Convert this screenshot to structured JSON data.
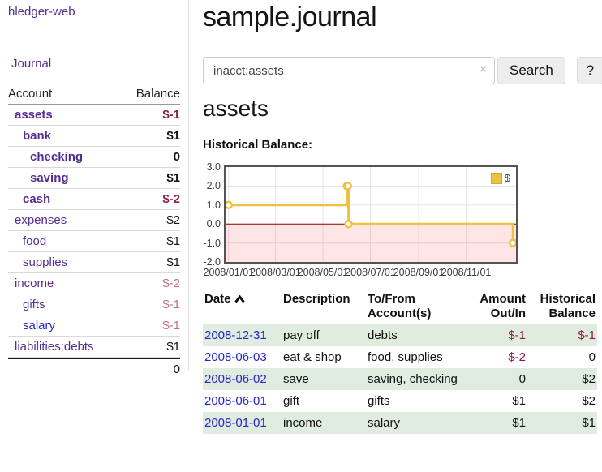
{
  "app": {
    "brand": "hledger-web",
    "journal": "Journal"
  },
  "sidebar": {
    "header": {
      "account": "Account",
      "balance": "Balance"
    },
    "accounts": [
      {
        "name": "assets",
        "balance": "$-1"
      },
      {
        "name": "bank",
        "balance": "$1"
      },
      {
        "name": "checking",
        "balance": "0"
      },
      {
        "name": "saving",
        "balance": "$1"
      },
      {
        "name": "cash",
        "balance": "$-2"
      },
      {
        "name": "expenses",
        "balance": "$2"
      },
      {
        "name": "food",
        "balance": "$1"
      },
      {
        "name": "supplies",
        "balance": "$1"
      },
      {
        "name": "income",
        "balance": "$-2"
      },
      {
        "name": "gifts",
        "balance": "$-1"
      },
      {
        "name": "salary",
        "balance": "$-1"
      },
      {
        "name": "liabilities:debts",
        "balance": "$1"
      }
    ],
    "total": "0"
  },
  "header": {
    "title": "sample.journal"
  },
  "search": {
    "value": "inacct:assets",
    "clear": "×",
    "button": "Search",
    "help": "?"
  },
  "page": {
    "title": "assets",
    "chart_label": "Historical Balance:"
  },
  "chart_data": {
    "type": "line",
    "step": true,
    "title": "Historical Balance",
    "ylim": [
      -2,
      3
    ],
    "x_domain": [
      "2007-12-28",
      "2009-01-04"
    ],
    "yticks": [
      {
        "label": "3.0",
        "value": 3
      },
      {
        "label": "2.0",
        "value": 2
      },
      {
        "label": "1.0",
        "value": 1
      },
      {
        "label": "0.0",
        "value": 0
      },
      {
        "label": "-1.0",
        "value": -1
      },
      {
        "label": "-2.0",
        "value": -2
      }
    ],
    "xticks": [
      {
        "label": "2008/01/01",
        "date": "2008-01-01"
      },
      {
        "label": "2008/03/01",
        "date": "2008-03-01"
      },
      {
        "label": "2008/05/01",
        "date": "2008-05-01"
      },
      {
        "label": "2008/07/01",
        "date": "2008-07-01"
      },
      {
        "label": "2008/09/01",
        "date": "2008-09-01"
      },
      {
        "label": "2008/11/01",
        "date": "2008-11-01"
      }
    ],
    "series": [
      {
        "name": "$",
        "color": "#edc240",
        "points": [
          {
            "date": "2008-01-01",
            "value": 1
          },
          {
            "date": "2008-06-01",
            "value": 2
          },
          {
            "date": "2008-06-02",
            "value": 2
          },
          {
            "date": "2008-06-03",
            "value": 0
          },
          {
            "date": "2008-12-31",
            "value": -1
          }
        ]
      }
    ],
    "legend": [
      {
        "name": "$",
        "color": "#edc240"
      }
    ],
    "grid_color": "#e5e5e5",
    "zero_line_color": "#8b0000",
    "negative_region": {
      "below": 0,
      "fill": "rgba(255,0,0,0.10)"
    }
  },
  "register": {
    "headers": {
      "date": "Date",
      "description": "Description",
      "accounts": "To/From Account(s)",
      "amount": "Amount Out/In",
      "balance": "Historical Balance"
    },
    "rows": [
      {
        "date": "2008-12-31",
        "description": "pay off",
        "accounts": "debts",
        "amount": "$-1",
        "balance": "$-1"
      },
      {
        "date": "2008-06-03",
        "description": "eat & shop",
        "accounts": "food, supplies",
        "amount": "$-2",
        "balance": "0"
      },
      {
        "date": "2008-06-02",
        "description": "save",
        "accounts": "saving, checking",
        "amount": "0",
        "balance": "$2"
      },
      {
        "date": "2008-06-01",
        "description": "gift",
        "accounts": "gifts",
        "amount": "$1",
        "balance": "$2"
      },
      {
        "date": "2008-01-01",
        "description": "income",
        "accounts": "salary",
        "amount": "$1",
        "balance": "$1"
      }
    ]
  }
}
